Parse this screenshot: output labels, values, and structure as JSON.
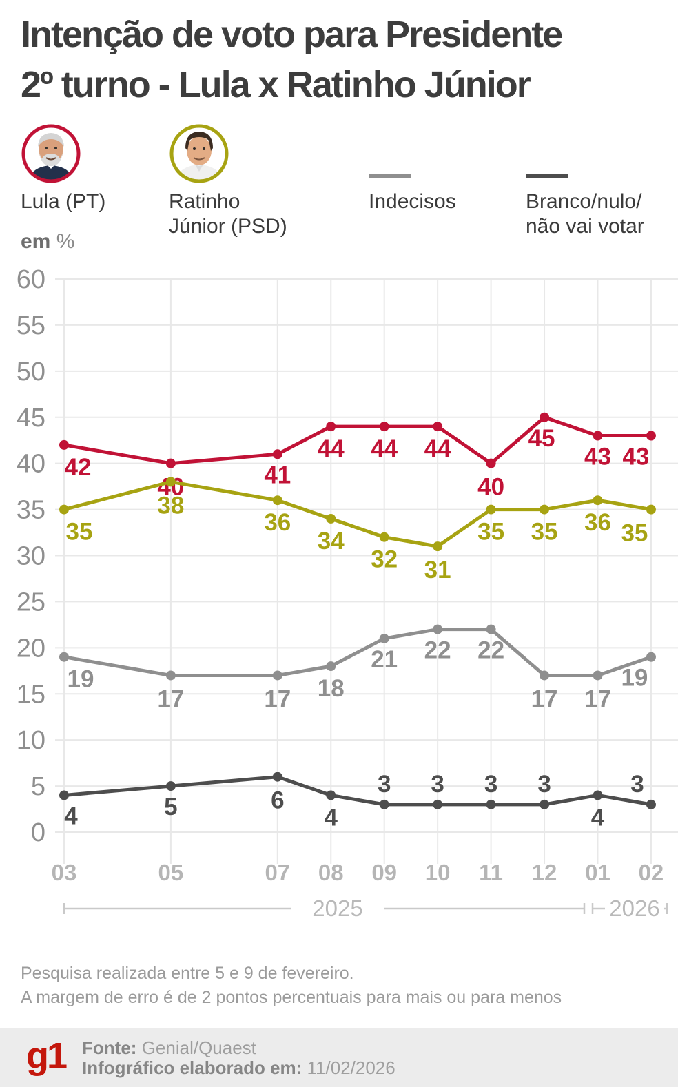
{
  "header": {
    "title_line1": "Intenção de voto para Presidente",
    "title_line2": "2º turno - Lula x Ratinho Júnior"
  },
  "legend": {
    "lula": {
      "label": "Lula (PT)",
      "ring_color": "#c11236"
    },
    "ratinho": {
      "label_line1": "Ratinho",
      "label_line2": "Júnior (PSD)",
      "ring_color": "#a7a312"
    },
    "indecisos": {
      "label": "Indecisos",
      "swatch_color": "#8f8f8f"
    },
    "branco": {
      "label_line1": "Branco/nulo/",
      "label_line2": "não vai votar",
      "swatch_color": "#4d4d4d"
    }
  },
  "unit_label": {
    "bold": "em",
    "regular": "%"
  },
  "chart_data": {
    "type": "line",
    "title": "Intenção de voto para Presidente 2º turno - Lula x Ratinho Júnior",
    "ylabel": "em %",
    "categories": [
      "03",
      "05",
      "07",
      "08",
      "09",
      "10",
      "11",
      "12",
      "01",
      "02"
    ],
    "x_month_positions": [
      0,
      2,
      4,
      5,
      6,
      7,
      8,
      9,
      10,
      11
    ],
    "ylim": [
      0,
      60
    ],
    "y_ticks": [
      0,
      5,
      10,
      15,
      20,
      25,
      30,
      35,
      40,
      45,
      50,
      55,
      60
    ],
    "grid": true,
    "legend_position": "top",
    "series": [
      {
        "name": "Lula (PT)",
        "color": "#c11236",
        "values": [
          42,
          40,
          41,
          44,
          44,
          44,
          40,
          45,
          43,
          43
        ]
      },
      {
        "name": "Ratinho Júnior (PSD)",
        "color": "#a7a312",
        "values": [
          35,
          38,
          36,
          34,
          32,
          31,
          35,
          35,
          36,
          35
        ]
      },
      {
        "name": "Indecisos",
        "color": "#8f8f8f",
        "values": [
          19,
          17,
          17,
          18,
          21,
          22,
          22,
          17,
          17,
          19
        ]
      },
      {
        "name": "Branco/nulo/não vai votar",
        "color": "#4d4d4d",
        "values": [
          4,
          5,
          6,
          4,
          3,
          3,
          3,
          3,
          4,
          3
        ]
      }
    ],
    "label_offsets": [
      [
        [
          20,
          44
        ],
        [
          0,
          46
        ],
        [
          0,
          42
        ],
        [
          0,
          44
        ],
        [
          0,
          44
        ],
        [
          0,
          44
        ],
        [
          0,
          46
        ],
        [
          -4,
          42
        ],
        [
          0,
          42
        ],
        [
          -22,
          42
        ]
      ],
      [
        [
          22,
          44
        ],
        [
          0,
          46
        ],
        [
          0,
          44
        ],
        [
          0,
          44
        ],
        [
          0,
          44
        ],
        [
          0,
          46
        ],
        [
          0,
          44
        ],
        [
          0,
          44
        ],
        [
          0,
          44
        ],
        [
          -24,
          46
        ]
      ],
      [
        [
          24,
          44
        ],
        [
          0,
          46
        ],
        [
          0,
          46
        ],
        [
          0,
          44
        ],
        [
          0,
          42
        ],
        [
          0,
          42
        ],
        [
          0,
          42
        ],
        [
          0,
          46
        ],
        [
          0,
          46
        ],
        [
          -24,
          42
        ]
      ],
      [
        [
          10,
          42
        ],
        [
          0,
          42
        ],
        [
          0,
          46
        ],
        [
          0,
          44
        ],
        [
          0,
          -18
        ],
        [
          0,
          -18
        ],
        [
          0,
          -18
        ],
        [
          0,
          -18
        ],
        [
          0,
          44
        ],
        [
          -20,
          -18
        ]
      ]
    ],
    "year_brackets": [
      {
        "label": "2025",
        "from_index": 0,
        "to_index": 7
      },
      {
        "label": "2026",
        "from_index": 8,
        "to_index": 9
      }
    ]
  },
  "footnote": {
    "line1": "Pesquisa realizada entre 5 e 9 de fevereiro.",
    "line2": "A margem de erro é de 2 pontos percentuais para mais ou para menos"
  },
  "footer": {
    "logo": "g1",
    "logo_color": "#c4170c",
    "fonte_label": "Fonte:",
    "fonte_value": "Genial/Quaest",
    "info_label": "Infográfico elaborado em:",
    "info_value": "11/02/2026"
  }
}
